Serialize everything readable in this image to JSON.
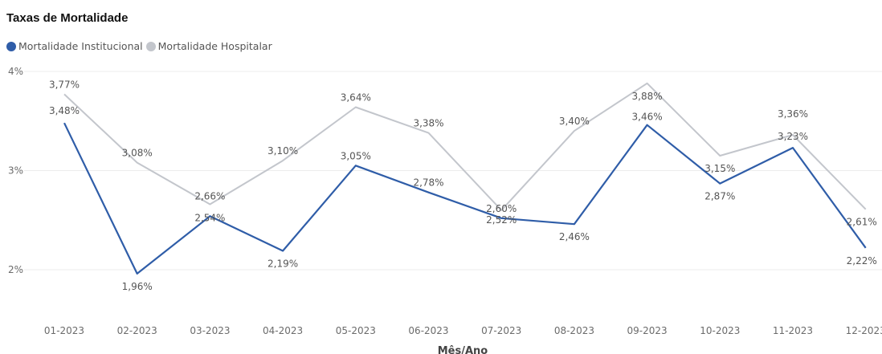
{
  "chart_data": {
    "type": "line",
    "title": "Taxas de Mortalidade",
    "xlabel": "Mês/Ano",
    "ylabel": "",
    "ylim": [
      2,
      4
    ],
    "yticks": [
      "2%",
      "3%",
      "4%"
    ],
    "grid": true,
    "legend_position": "top-left",
    "categories": [
      "01-2023",
      "02-2023",
      "03-2023",
      "04-2023",
      "05-2023",
      "06-2023",
      "07-2023",
      "08-2023",
      "09-2023",
      "10-2023",
      "11-2023",
      "12-2023"
    ],
    "series": [
      {
        "name": "Mortalidade Institucional",
        "color": "#2f5da8",
        "values": [
          3.48,
          1.96,
          2.54,
          2.19,
          3.05,
          2.78,
          2.52,
          2.46,
          3.46,
          2.87,
          3.23,
          2.22
        ],
        "labels": [
          "3,48%",
          "1,96%",
          "2,54%",
          "2,19%",
          "3,05%",
          "2,78%",
          "2,52%",
          "2,46%",
          "3,46%",
          "2,87%",
          "3,23%",
          "2,22%"
        ]
      },
      {
        "name": "Mortalidade Hospitalar",
        "color": "#c3c6cc",
        "values": [
          3.77,
          3.08,
          2.66,
          3.1,
          3.64,
          3.38,
          2.6,
          3.4,
          3.88,
          3.15,
          3.36,
          2.61
        ],
        "labels": [
          "3,77%",
          "3,08%",
          "2,66%",
          "3,10%",
          "3,64%",
          "3,38%",
          "2,60%",
          "3,40%",
          "3,88%",
          "3,15%",
          "3,36%",
          "2,61%"
        ]
      }
    ]
  }
}
